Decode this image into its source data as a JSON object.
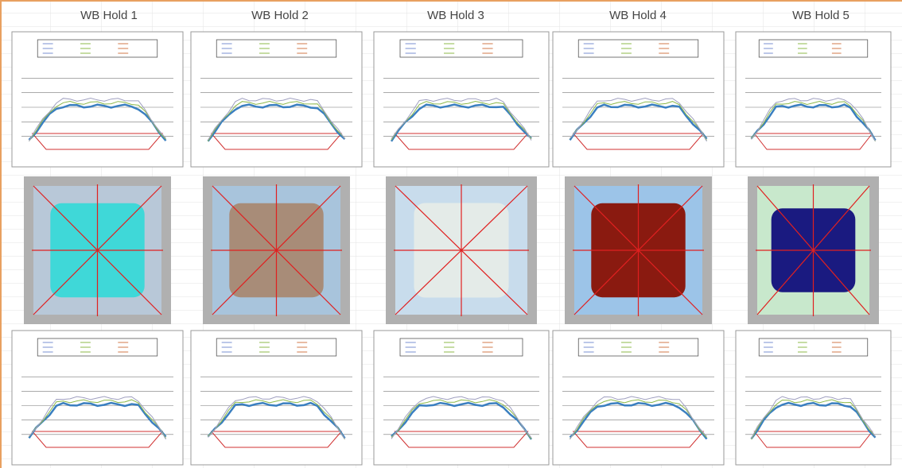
{
  "columns": [
    {
      "title": "WB Hold 1"
    },
    {
      "title": "WB Hold 2"
    },
    {
      "title": "WB Hold 3"
    },
    {
      "title": "WB Hold 4"
    },
    {
      "title": "WB Hold 5"
    }
  ]
}
